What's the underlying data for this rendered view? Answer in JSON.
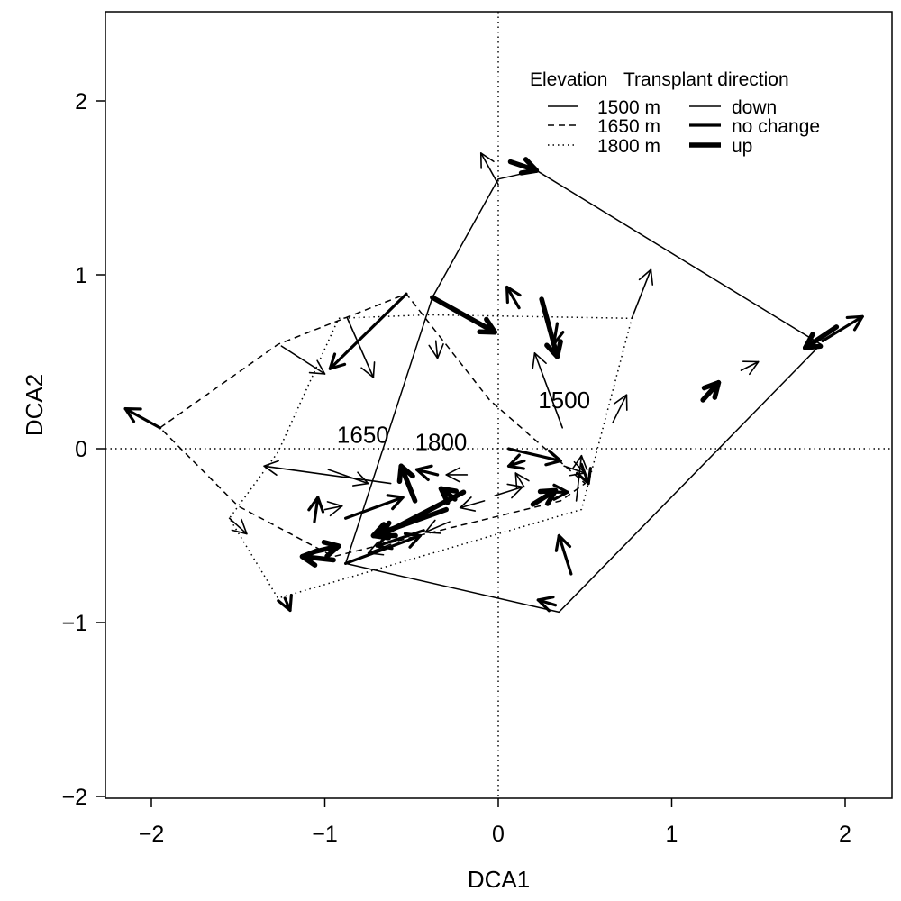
{
  "chart_data": {
    "type": "scatter",
    "subtype": "arrow-ordination-plot",
    "title": "",
    "xlabel": "DCA1",
    "ylabel": "DCA2",
    "xlim": [
      -2.3,
      2.3
    ],
    "ylim": [
      -2.0,
      2.55
    ],
    "x_ticks": [
      -2,
      -1,
      0,
      1,
      2
    ],
    "x_tick_labels": [
      "−2",
      "−1",
      "0",
      "1",
      "2"
    ],
    "y_ticks": [
      -2,
      -1,
      0,
      1,
      2
    ],
    "y_tick_labels": [
      "−2",
      "−1",
      "0",
      "1",
      "2"
    ],
    "grid": false,
    "reference_lines": {
      "x": 0,
      "y": 0,
      "style": "dotted"
    },
    "legend": {
      "position": "top-right",
      "elevation_title": "Elevation",
      "direction_title": "Transplant direction",
      "elevation_items": [
        {
          "label": "1500 m",
          "line_style": "solid"
        },
        {
          "label": "1650 m",
          "line_style": "dashed"
        },
        {
          "label": "1800 m",
          "line_style": "dotted"
        }
      ],
      "direction_items": [
        {
          "label": "down",
          "weight": "thin"
        },
        {
          "label": "no change",
          "weight": "medium"
        },
        {
          "label": "up",
          "weight": "thick"
        }
      ]
    },
    "group_labels": [
      {
        "text": "1500",
        "x": 0.38,
        "y": 0.28
      },
      {
        "text": "1650",
        "x": -0.78,
        "y": 0.08
      },
      {
        "text": "1800",
        "x": -0.33,
        "y": 0.04
      }
    ],
    "hulls": [
      {
        "elevation": "1500 m",
        "line_style": "solid",
        "points": [
          [
            0.0,
            1.55
          ],
          [
            0.22,
            1.6
          ],
          [
            1.86,
            0.6
          ],
          [
            0.35,
            -0.94
          ],
          [
            -0.88,
            -0.66
          ],
          [
            -0.38,
            0.87
          ]
        ]
      },
      {
        "elevation": "1650 m",
        "line_style": "dashed",
        "points": [
          [
            -1.95,
            0.12
          ],
          [
            -1.27,
            0.6
          ],
          [
            -0.53,
            0.89
          ],
          [
            -0.05,
            0.28
          ],
          [
            0.5,
            -0.2
          ],
          [
            0.36,
            -0.3
          ],
          [
            -0.95,
            -0.62
          ],
          [
            -1.5,
            -0.33
          ]
        ]
      },
      {
        "elevation": "1800 m",
        "line_style": "dotted",
        "points": [
          [
            -0.92,
            0.75
          ],
          [
            -0.4,
            0.77
          ],
          [
            0.77,
            0.75
          ],
          [
            0.48,
            -0.35
          ],
          [
            -1.27,
            -0.86
          ],
          [
            -1.55,
            -0.4
          ],
          [
            -1.27,
            -0.02
          ]
        ]
      }
    ],
    "arrows": [
      {
        "x0": 0.0,
        "y0": 1.52,
        "x1": -0.1,
        "y1": 1.7,
        "direction": "down"
      },
      {
        "x0": 0.07,
        "y0": 1.65,
        "x1": 0.22,
        "y1": 1.6,
        "direction": "up"
      },
      {
        "x0": 1.87,
        "y0": 0.62,
        "x1": 2.1,
        "y1": 0.76,
        "direction": "no change"
      },
      {
        "x0": 1.95,
        "y0": 0.7,
        "x1": 1.77,
        "y1": 0.58,
        "direction": "up"
      },
      {
        "x0": 0.77,
        "y0": 0.75,
        "x1": 0.88,
        "y1": 1.03,
        "direction": "down"
      },
      {
        "x0": -0.38,
        "y0": 0.87,
        "x1": -0.02,
        "y1": 0.67,
        "direction": "up"
      },
      {
        "x0": 0.25,
        "y0": 0.86,
        "x1": 0.34,
        "y1": 0.53,
        "direction": "up"
      },
      {
        "x0": 0.34,
        "y0": 0.72,
        "x1": 0.32,
        "y1": 0.6,
        "direction": "no change"
      },
      {
        "x0": 0.12,
        "y0": 0.81,
        "x1": 0.05,
        "y1": 0.93,
        "direction": "no change"
      },
      {
        "x0": 0.37,
        "y0": 0.12,
        "x1": 0.21,
        "y1": 0.55,
        "direction": "down"
      },
      {
        "x0": -0.53,
        "y0": 0.89,
        "x1": -0.97,
        "y1": 0.46,
        "direction": "no change"
      },
      {
        "x0": -0.87,
        "y0": 0.75,
        "x1": -0.72,
        "y1": 0.41,
        "direction": "down"
      },
      {
        "x0": -1.25,
        "y0": 0.59,
        "x1": -1.0,
        "y1": 0.43,
        "direction": "down"
      },
      {
        "x0": -0.36,
        "y0": 0.62,
        "x1": -0.35,
        "y1": 0.52,
        "direction": "down"
      },
      {
        "x0": -1.95,
        "y0": 0.12,
        "x1": -2.15,
        "y1": 0.23,
        "direction": "no change"
      },
      {
        "x0": 1.18,
        "y0": 0.28,
        "x1": 1.27,
        "y1": 0.38,
        "direction": "up"
      },
      {
        "x0": 1.4,
        "y0": 0.45,
        "x1": 1.5,
        "y1": 0.5,
        "direction": "down"
      },
      {
        "x0": 0.66,
        "y0": 0.15,
        "x1": 0.74,
        "y1": 0.31,
        "direction": "down"
      },
      {
        "x0": 0.06,
        "y0": 0.0,
        "x1": 0.36,
        "y1": -0.07,
        "direction": "no change"
      },
      {
        "x0": 0.48,
        "y0": -0.09,
        "x1": 0.52,
        "y1": -0.2,
        "direction": "no change"
      },
      {
        "x0": 0.38,
        "y0": -0.1,
        "x1": 0.5,
        "y1": -0.14,
        "direction": "down"
      },
      {
        "x0": 0.45,
        "y0": -0.3,
        "x1": 0.48,
        "y1": -0.04,
        "direction": "down"
      },
      {
        "x0": 0.2,
        "y0": -0.32,
        "x1": 0.33,
        "y1": -0.24,
        "direction": "up"
      },
      {
        "x0": 0.24,
        "y0": -0.25,
        "x1": 0.4,
        "y1": -0.25,
        "direction": "no change"
      },
      {
        "x0": 0.15,
        "y0": -0.07,
        "x1": 0.06,
        "y1": -0.1,
        "direction": "no change"
      },
      {
        "x0": 0.15,
        "y0": -0.22,
        "x1": 0.1,
        "y1": -0.14,
        "direction": "down"
      },
      {
        "x0": 0.42,
        "y0": -0.72,
        "x1": 0.35,
        "y1": -0.5,
        "direction": "no change"
      },
      {
        "x0": 0.33,
        "y0": -0.9,
        "x1": 0.23,
        "y1": -0.87,
        "direction": "no change"
      },
      {
        "x0": -0.48,
        "y0": -0.3,
        "x1": -0.56,
        "y1": -0.1,
        "direction": "up"
      },
      {
        "x0": -0.35,
        "y0": -0.15,
        "x1": -0.47,
        "y1": -0.12,
        "direction": "no change"
      },
      {
        "x0": -0.18,
        "y0": -0.15,
        "x1": -0.3,
        "y1": -0.15,
        "direction": "down"
      },
      {
        "x0": -0.98,
        "y0": -0.12,
        "x1": -0.75,
        "y1": -0.2,
        "direction": "down"
      },
      {
        "x0": -0.62,
        "y0": -0.2,
        "x1": -1.35,
        "y1": -0.1,
        "direction": "down"
      },
      {
        "x0": -0.2,
        "y0": -0.25,
        "x1": -0.68,
        "y1": -0.5,
        "direction": "up"
      },
      {
        "x0": -0.3,
        "y0": -0.35,
        "x1": -0.72,
        "y1": -0.5,
        "direction": "up"
      },
      {
        "x0": -0.25,
        "y0": -0.29,
        "x1": -0.33,
        "y1": -0.23,
        "direction": "up"
      },
      {
        "x0": -0.43,
        "y0": -0.47,
        "x1": -0.7,
        "y1": -0.56,
        "direction": "no change"
      },
      {
        "x0": -0.88,
        "y0": -0.4,
        "x1": -0.55,
        "y1": -0.28,
        "direction": "no change"
      },
      {
        "x0": -0.88,
        "y0": -0.66,
        "x1": -0.45,
        "y1": -0.5,
        "direction": "no change"
      },
      {
        "x0": -0.28,
        "y0": -0.42,
        "x1": -0.42,
        "y1": -0.48,
        "direction": "down"
      },
      {
        "x0": -0.08,
        "y0": -0.3,
        "x1": -0.22,
        "y1": -0.34,
        "direction": "down"
      },
      {
        "x0": -0.02,
        "y0": -0.27,
        "x1": 0.14,
        "y1": -0.22,
        "direction": "down"
      },
      {
        "x0": -1.06,
        "y0": -0.42,
        "x1": -1.04,
        "y1": -0.28,
        "direction": "no change"
      },
      {
        "x0": -1.0,
        "y0": -0.35,
        "x1": -0.9,
        "y1": -0.33,
        "direction": "down"
      },
      {
        "x0": -1.05,
        "y0": -0.59,
        "x1": -0.92,
        "y1": -0.56,
        "direction": "up"
      },
      {
        "x0": -0.95,
        "y0": -0.64,
        "x1": -1.13,
        "y1": -0.62,
        "direction": "up"
      },
      {
        "x0": -1.55,
        "y0": -0.4,
        "x1": -1.45,
        "y1": -0.49,
        "direction": "down"
      },
      {
        "x0": -1.23,
        "y0": -0.86,
        "x1": -1.2,
        "y1": -0.93,
        "direction": "no change"
      },
      {
        "x0": -0.62,
        "y0": -0.55,
        "x1": -0.75,
        "y1": -0.6,
        "direction": "down"
      }
    ]
  }
}
